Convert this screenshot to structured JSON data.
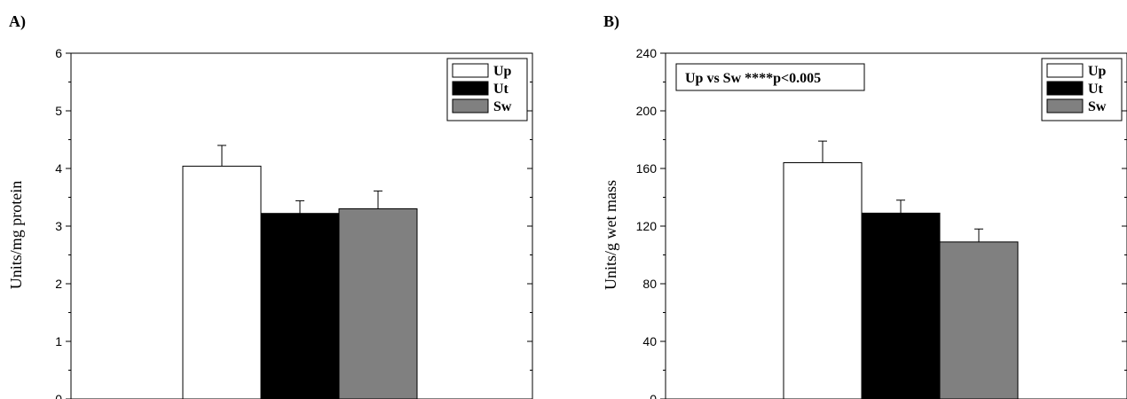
{
  "chart_data": [
    {
      "type": "bar",
      "panel_label": "A)",
      "ylabel": "Units/mg protein",
      "ylim": [
        0,
        6
      ],
      "yticks": [
        0,
        1,
        2,
        3,
        4,
        5,
        6
      ],
      "legend_position": "top-right",
      "annotation": "",
      "series": [
        {
          "name": "Up",
          "value": 4.04,
          "error": 0.36,
          "color": "#ffffff"
        },
        {
          "name": "Ut",
          "value": 3.22,
          "error": 0.22,
          "color": "#000000"
        },
        {
          "name": "Sw",
          "value": 3.3,
          "error": 0.31,
          "color": "#808080"
        }
      ]
    },
    {
      "type": "bar",
      "panel_label": "B)",
      "ylabel": "Units/g wet mass",
      "ylim": [
        0,
        240
      ],
      "yticks": [
        0,
        40,
        80,
        120,
        160,
        200,
        240
      ],
      "legend_position": "top-right",
      "annotation": "Up vs Sw ****p<0.005",
      "series": [
        {
          "name": "Up",
          "value": 164,
          "error": 15,
          "color": "#ffffff"
        },
        {
          "name": "Ut",
          "value": 129,
          "error": 9,
          "color": "#000000"
        },
        {
          "name": "Sw",
          "value": 109,
          "error": 9,
          "color": "#808080"
        }
      ]
    }
  ]
}
